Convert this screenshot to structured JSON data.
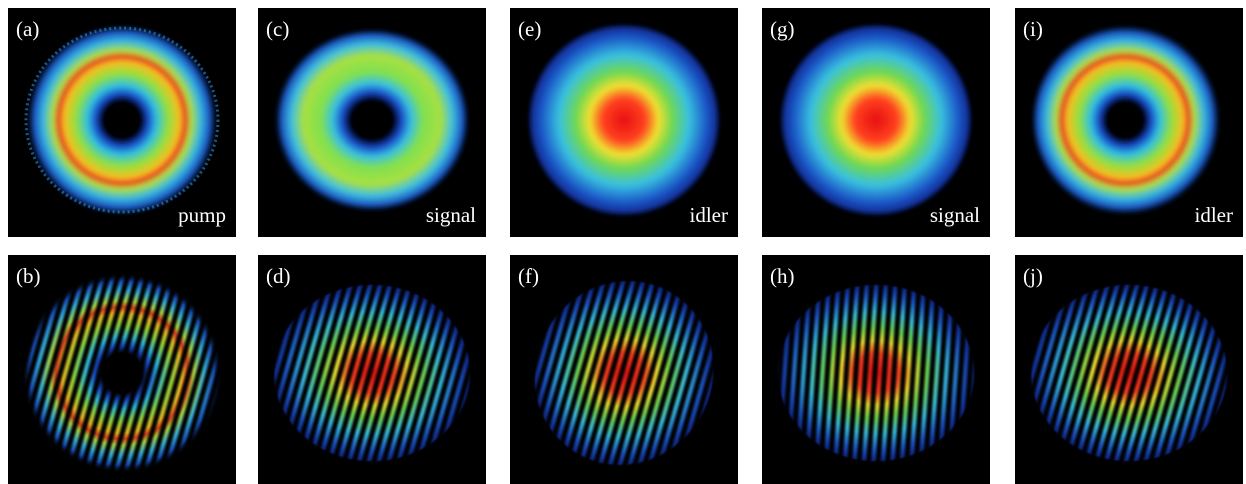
{
  "panels": [
    {
      "label": "(a)",
      "caption": "pump"
    },
    {
      "label": "(b)"
    },
    {
      "label": "(c)",
      "caption": "signal"
    },
    {
      "label": "(d)"
    },
    {
      "label": "(e)",
      "caption": "idler"
    },
    {
      "label": "(f)"
    },
    {
      "label": "(g)",
      "caption": "signal"
    },
    {
      "label": "(h)"
    },
    {
      "label": "(i)",
      "caption": "idler"
    },
    {
      "label": "(j)"
    }
  ]
}
